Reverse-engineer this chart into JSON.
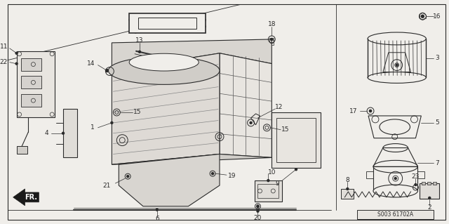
{
  "bg_color": "#f0eeea",
  "line_color": "#2a2a2a",
  "diagram_code": "S003 61702A",
  "fig_width": 6.4,
  "fig_height": 3.19,
  "dpi": 100
}
